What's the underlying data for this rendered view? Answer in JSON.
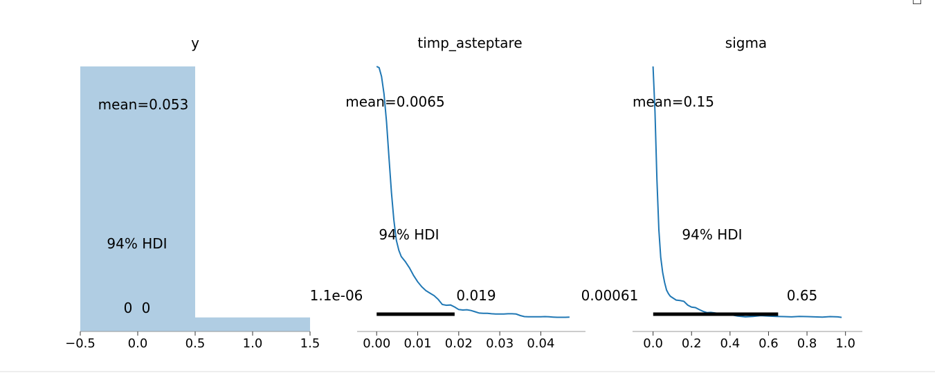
{
  "colors": {
    "hist_fill": "#b0cde3",
    "kde_line": "#1f77b4",
    "hdi_bar": "#000000",
    "axis": "#999999",
    "text": "#000000"
  },
  "chart_data": [
    {
      "type": "bar",
      "title": "y",
      "xlabel": "",
      "ylabel": "",
      "xlim": [
        -0.5,
        1.5
      ],
      "ylim": [
        0,
        1.0
      ],
      "xticks": [
        "−0.5",
        "0.0",
        "0.5",
        "1.0",
        "1.5"
      ],
      "bins": [
        {
          "x0": -0.5,
          "x1": 0.5,
          "value": 1.0
        },
        {
          "x0": 0.5,
          "x1": 1.5,
          "value": 0.053
        }
      ],
      "mean_label": "mean=0.053",
      "hdi_label": "94% HDI",
      "hdi_bounds": [
        "0",
        "0"
      ]
    },
    {
      "type": "line",
      "title": "timp_asteptare",
      "xlabel": "",
      "ylabel": "",
      "xlim": [
        -0.0024,
        0.0487
      ],
      "ylim": [
        0,
        1.0
      ],
      "xticks": [
        "0.00",
        "0.01",
        "0.02",
        "0.03",
        "0.04"
      ],
      "series": [
        {
          "x": [
            0.0,
            0.0006,
            0.0012,
            0.0018,
            0.0024,
            0.003,
            0.0036,
            0.0042,
            0.0048,
            0.0054,
            0.006,
            0.007,
            0.008,
            0.009,
            0.01,
            0.011,
            0.012,
            0.013,
            0.014,
            0.015,
            0.016,
            0.017,
            0.018,
            0.019,
            0.02,
            0.021,
            0.022,
            0.023,
            0.024,
            0.025,
            0.026,
            0.027,
            0.028,
            0.029,
            0.03,
            0.031,
            0.032,
            0.033,
            0.034,
            0.035,
            0.036,
            0.037,
            0.038,
            0.039,
            0.04,
            0.041,
            0.042,
            0.043,
            0.044,
            0.045,
            0.046,
            0.047
          ],
          "y": [
            1.0,
            0.995,
            0.96,
            0.89,
            0.78,
            0.64,
            0.5,
            0.39,
            0.31,
            0.27,
            0.245,
            0.225,
            0.2,
            0.17,
            0.145,
            0.125,
            0.11,
            0.1,
            0.09,
            0.075,
            0.055,
            0.052,
            0.053,
            0.045,
            0.035,
            0.033,
            0.034,
            0.031,
            0.026,
            0.021,
            0.02,
            0.02,
            0.018,
            0.017,
            0.017,
            0.017,
            0.018,
            0.018,
            0.017,
            0.011,
            0.007,
            0.006,
            0.006,
            0.006,
            0.006,
            0.007,
            0.006,
            0.005,
            0.004,
            0.004,
            0.004,
            0.005
          ]
        }
      ],
      "hdi": [
        0.0,
        0.019
      ],
      "mean_label": "mean=0.0065",
      "hdi_label": "94% HDI",
      "hdi_bounds": [
        "1.1e-06",
        "0.019"
      ]
    },
    {
      "type": "line",
      "title": "sigma",
      "xlabel": "",
      "ylabel": "",
      "xlim": [
        -0.049,
        1.03
      ],
      "ylim": [
        0,
        1.0
      ],
      "xticks": [
        "0.0",
        "0.2",
        "0.4",
        "0.6",
        "0.8",
        "1.0"
      ],
      "series": [
        {
          "x": [
            0.0,
            0.01,
            0.02,
            0.03,
            0.04,
            0.05,
            0.06,
            0.07,
            0.08,
            0.09,
            0.1,
            0.12,
            0.14,
            0.16,
            0.18,
            0.2,
            0.22,
            0.24,
            0.26,
            0.28,
            0.3,
            0.33,
            0.36,
            0.4,
            0.44,
            0.48,
            0.52,
            0.56,
            0.6,
            0.64,
            0.68,
            0.72,
            0.76,
            0.8,
            0.84,
            0.88,
            0.92,
            0.96,
            0.98
          ],
          "y": [
            1.0,
            0.82,
            0.55,
            0.35,
            0.24,
            0.18,
            0.14,
            0.11,
            0.095,
            0.085,
            0.08,
            0.07,
            0.068,
            0.065,
            0.05,
            0.042,
            0.04,
            0.032,
            0.025,
            0.02,
            0.021,
            0.018,
            0.017,
            0.012,
            0.006,
            0.003,
            0.005,
            0.008,
            0.006,
            0.005,
            0.004,
            0.003,
            0.005,
            0.004,
            0.003,
            0.002,
            0.004,
            0.003,
            0.001
          ]
        }
      ],
      "hdi": [
        0.00061,
        0.65
      ],
      "mean_label": "mean=0.15",
      "hdi_label": "94% HDI",
      "hdi_bounds": [
        "0.00061",
        "0.65"
      ]
    }
  ]
}
